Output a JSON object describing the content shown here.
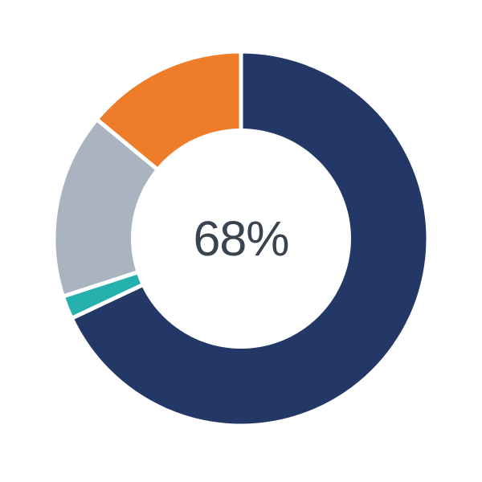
{
  "chart_data": {
    "type": "pie",
    "subtype": "donut",
    "title": "",
    "center_label": "68%",
    "legend": "none",
    "direction": "clockwise",
    "start_angle_deg": 0,
    "segments": [
      {
        "name": "navy",
        "value": 68,
        "color": "#233866"
      },
      {
        "name": "teal",
        "value": 2,
        "color": "#24B0AC"
      },
      {
        "name": "gray",
        "value": 16,
        "color": "#A9B4C0"
      },
      {
        "name": "orange",
        "value": 14,
        "color": "#EE7C28"
      }
    ],
    "separator_color": "#FFFFFF",
    "hole_color": "#FFFFFF",
    "label_color": "#3A4350",
    "background_color": "#FFFFFF"
  }
}
